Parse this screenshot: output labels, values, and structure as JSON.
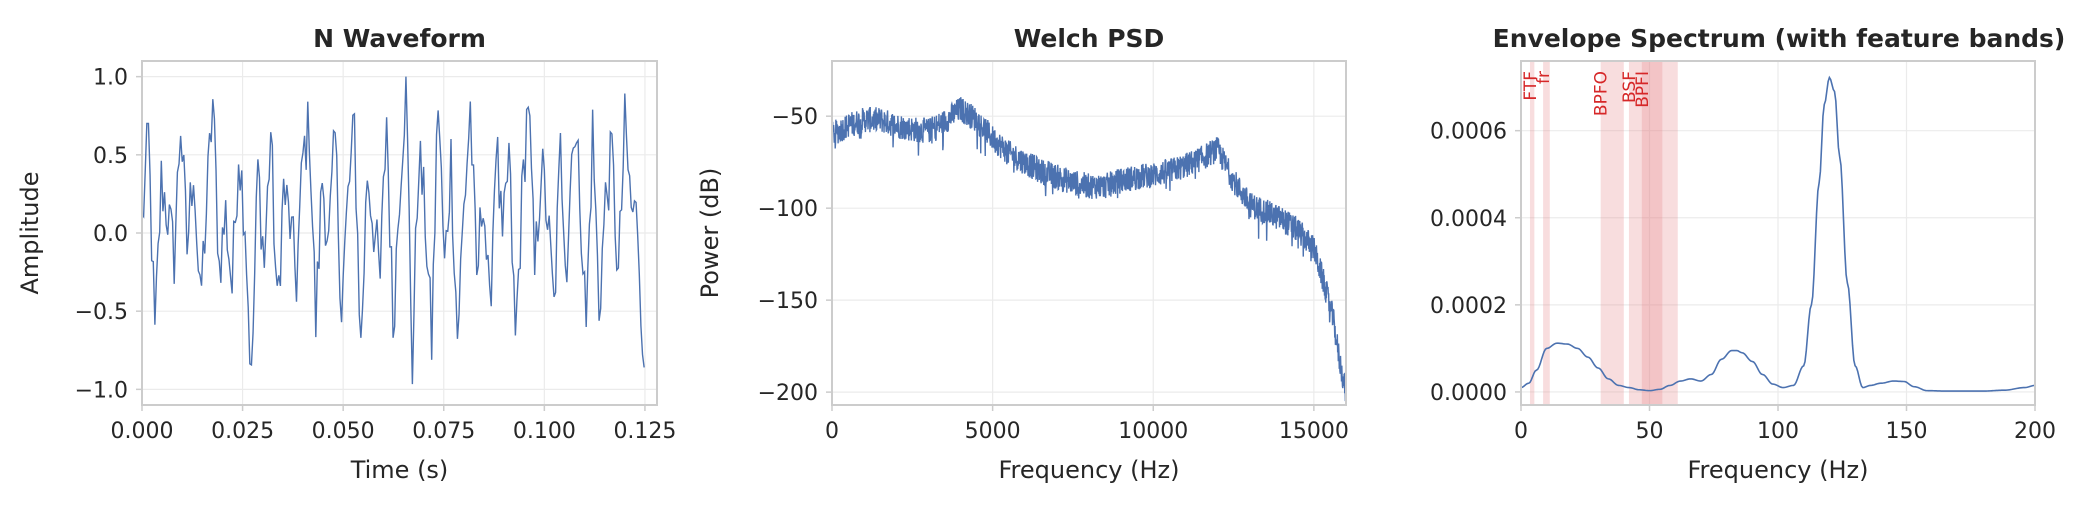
{
  "colors": {
    "line": "#4c72b0",
    "band_fill": "#e6868a",
    "band_text": "#d62728",
    "grid": "#ebebeb",
    "spine": "#cccccc",
    "text": "#262626"
  },
  "chart_data": [
    {
      "type": "line",
      "title": "N Waveform",
      "xlabel": "Time (s)",
      "ylabel": "Amplitude",
      "xlim": [
        0,
        0.128
      ],
      "ylim": [
        -1.1,
        1.1
      ],
      "xticks": [
        0,
        0.025,
        0.05,
        0.075,
        0.1,
        0.125
      ],
      "xtick_labels": [
        "0.000",
        "0.025",
        "0.050",
        "0.075",
        "0.100",
        "0.125"
      ],
      "yticks": [
        -1.0,
        -0.5,
        0.0,
        0.5,
        1.0
      ],
      "ytick_labels": [
        "−1.0",
        "−0.5",
        "0.0",
        "0.5",
        "1.0"
      ],
      "grid": true,
      "series": [
        {
          "x_start": 0,
          "x_step": 0.0016,
          "values": [
            0.05,
            0.62,
            -0.68,
            0.33,
            0.12,
            -0.15,
            0.72,
            -0.1,
            0.46,
            -0.48,
            0.15,
            0.84,
            -0.22,
            0.12,
            -0.35,
            0.55,
            0.1,
            -0.98,
            0.42,
            -0.2,
            0.65,
            -0.52,
            0.28,
            0.06,
            -0.3,
            0.48,
            0.7,
            -0.58,
            0.36,
            -0.08,
            0.6,
            -0.46,
            0.22,
            0.68,
            -0.75,
            0.4,
            0.05,
            -0.3,
            0.75,
            -0.6,
            0.3,
            0.96,
            -0.84,
            0.52,
            0.1,
            -0.7,
            0.88,
            -0.25,
            0.48,
            -0.66,
            0.15,
            0.8,
            -0.32,
            0.3,
            -0.55,
            0.62,
            -0.12,
            0.5,
            -0.7,
            0.18,
            0.9,
            -0.28,
            0.44,
            0.1,
            -0.5,
            0.52,
            -0.2,
            0.74,
            0.3,
            -0.6,
            0.65,
            -0.48,
            0.2,
            0.5,
            -0.3,
            0.68,
            0.15,
            0.08,
            -0.86
          ]
        }
      ]
    },
    {
      "type": "line",
      "title": "Welch PSD",
      "xlabel": "Frequency (Hz)",
      "ylabel": "Power (dB)",
      "xlim": [
        0,
        16000
      ],
      "ylim": [
        -207,
        -20
      ],
      "xticks": [
        0,
        5000,
        10000,
        15000
      ],
      "xtick_labels": [
        "0",
        "5000",
        "10000",
        "15000"
      ],
      "yticks": [
        -200,
        -150,
        -100,
        -50
      ],
      "ytick_labels": [
        "−200",
        "−150",
        "−100",
        "−50"
      ],
      "grid": true,
      "series": [
        {
          "x": [
            0,
            500,
            1000,
            1500,
            2000,
            2500,
            3000,
            3500,
            4000,
            4500,
            5000,
            5500,
            6000,
            6500,
            7000,
            7500,
            8000,
            8500,
            9000,
            9500,
            10000,
            10500,
            11000,
            11500,
            12000,
            12500,
            13000,
            13500,
            14000,
            14500,
            15000,
            15300,
            15600,
            15800,
            16000
          ],
          "values": [
            -60,
            -55,
            -52,
            -52,
            -55,
            -57,
            -58,
            -53,
            -46,
            -52,
            -62,
            -70,
            -75,
            -80,
            -83,
            -86,
            -88,
            -88,
            -85,
            -83,
            -82,
            -80,
            -77,
            -73,
            -68,
            -85,
            -98,
            -102,
            -106,
            -112,
            -122,
            -140,
            -160,
            -183,
            -200
          ],
          "noise": 7
        }
      ]
    },
    {
      "type": "line",
      "title": "Envelope Spectrum (with feature bands)",
      "xlabel": "Frequency (Hz)",
      "ylabel": "",
      "xlim": [
        0,
        200
      ],
      "ylim": [
        -3e-05,
        0.00076
      ],
      "xticks": [
        0,
        50,
        100,
        150,
        200
      ],
      "xtick_labels": [
        "0",
        "50",
        "100",
        "150",
        "200"
      ],
      "yticks": [
        0,
        0.0002,
        0.0004,
        0.0006
      ],
      "ytick_labels": [
        "0.0000",
        "0.0002",
        "0.0004",
        "0.0006"
      ],
      "grid": true,
      "bands": [
        {
          "name": "FTF",
          "low": 3.5,
          "high": 5.2
        },
        {
          "name": "fr",
          "low": 8.6,
          "high": 11.2
        },
        {
          "name": "BPFO",
          "low": 31,
          "high": 40
        },
        {
          "name": "BSF",
          "low": 42,
          "high": 55
        },
        {
          "name": "BPFI",
          "low": 47,
          "high": 61
        }
      ],
      "series": [
        {
          "x": [
            0,
            3,
            6,
            10,
            14,
            18,
            22,
            26,
            30,
            34,
            38,
            42,
            46,
            50,
            54,
            58,
            62,
            66,
            70,
            74,
            78,
            82,
            84,
            86,
            90,
            94,
            98,
            102,
            106,
            110,
            113,
            116,
            118,
            120,
            122,
            124,
            127,
            130,
            133,
            136,
            140,
            145,
            149,
            153,
            158,
            165,
            172,
            180,
            188,
            196,
            200
          ],
          "values": [
            1e-05,
            2e-05,
            5e-05,
            0.0001,
            0.000112,
            0.00011,
            0.0001,
            8e-05,
            5.5e-05,
            3e-05,
            1.5e-05,
            1e-05,
            5e-06,
            3e-06,
            6e-06,
            1.5e-05,
            2.5e-05,
            3e-05,
            2.5e-05,
            4e-05,
            7.5e-05,
            9.5e-05,
            9.5e-05,
            9e-05,
            7e-05,
            4e-05,
            1.8e-05,
            1e-05,
            1.5e-05,
            6e-05,
            0.0002,
            0.00048,
            0.00066,
            0.000722,
            0.00069,
            0.00054,
            0.00025,
            6e-05,
            1e-05,
            1.5e-05,
            2e-05,
            2.5e-05,
            2.4e-05,
            1.2e-05,
            3e-06,
            2e-06,
            2e-06,
            2e-06,
            4e-06,
            1e-05,
            1.5e-05
          ]
        }
      ]
    }
  ]
}
